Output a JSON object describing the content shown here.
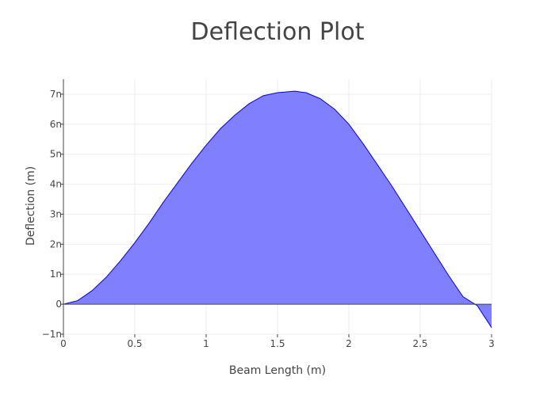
{
  "chart_data": {
    "type": "area",
    "title": "Deflection Plot",
    "xlabel": "Beam Length (m)",
    "ylabel": "Deflection (m)",
    "xlim": [
      0,
      3
    ],
    "ylim": [
      -1e-09,
      7.5e-09
    ],
    "x_ticks": [
      0,
      0.5,
      1,
      1.5,
      2,
      2.5,
      3
    ],
    "x_tick_labels": [
      "0",
      "0.5",
      "1",
      "1.5",
      "2",
      "2.5",
      "3"
    ],
    "y_ticks": [
      -1e-09,
      0,
      1e-09,
      2e-09,
      3e-09,
      4e-09,
      5e-09,
      6e-09,
      7e-09
    ],
    "y_tick_labels": [
      "−1n",
      "0",
      "1n",
      "2n",
      "3n",
      "4n",
      "5n",
      "6n",
      "7n"
    ],
    "grid": true,
    "fill": "tozeroy",
    "series": [
      {
        "color": "#0000ff",
        "fill_color": "#8080ff",
        "x": [
          0,
          0.1,
          0.2,
          0.3,
          0.4,
          0.5,
          0.6,
          0.7,
          0.8,
          0.9,
          1.0,
          1.1,
          1.2,
          1.3,
          1.4,
          1.5,
          1.62,
          1.7,
          1.8,
          1.9,
          2.0,
          2.1,
          2.2,
          2.3,
          2.4,
          2.5,
          2.6,
          2.7,
          2.8,
          2.9,
          3.0
        ],
        "y": [
          0,
          1.2e-10,
          4.5e-10,
          9e-10,
          1.45e-09,
          2.05e-09,
          2.7e-09,
          3.4e-09,
          4.05e-09,
          4.7e-09,
          5.3e-09,
          5.85e-09,
          6.3e-09,
          6.68e-09,
          6.95e-09,
          7.05e-09,
          7.1e-09,
          7.05e-09,
          6.85e-09,
          6.5e-09,
          6e-09,
          5.35e-09,
          4.65e-09,
          3.95e-09,
          3.2e-09,
          2.45e-09,
          1.7e-09,
          9.5e-10,
          2.5e-10,
          -5e-11,
          -7.8e-10
        ]
      }
    ]
  }
}
